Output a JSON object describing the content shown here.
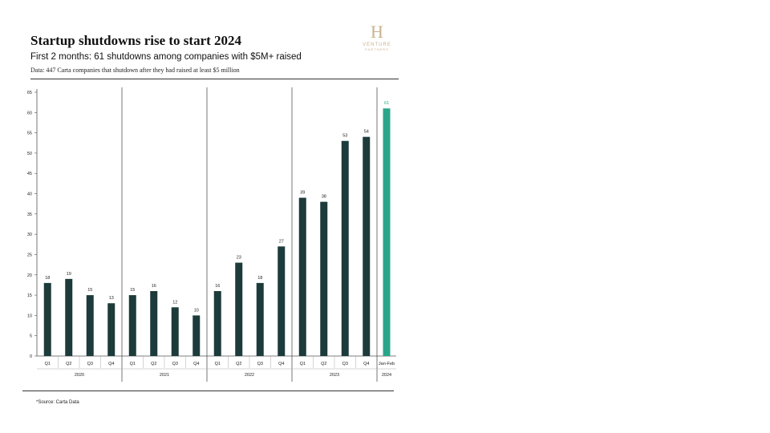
{
  "header": {
    "title": "Startup shutdowns rise to start 2024",
    "subtitle": "First 2 months: 61 shutdowns among companies with $5M+ raised",
    "note": "Data: 447 Carta companies that shutdown after they had raised at least $5 million"
  },
  "logo": {
    "mark": "H",
    "word": "VENTURE",
    "word2": "PARTNERS",
    "color": "#c9b28e"
  },
  "footer": {
    "source": "*Source: Carta Data"
  },
  "chart_data": {
    "type": "bar",
    "title": "Startup shutdowns rise to start 2024",
    "xlabel": "",
    "ylabel": "",
    "ylim": [
      0,
      65
    ],
    "yticks": [
      0,
      5,
      10,
      15,
      20,
      25,
      30,
      35,
      40,
      45,
      50,
      55,
      60,
      65
    ],
    "grid": false,
    "legend": "none",
    "groups": [
      {
        "label": "2020",
        "categories": [
          "Q1",
          "Q2",
          "Q3",
          "Q4"
        ],
        "values": [
          18,
          19,
          15,
          13
        ]
      },
      {
        "label": "2021",
        "categories": [
          "Q1",
          "Q2",
          "Q3",
          "Q4"
        ],
        "values": [
          15,
          16,
          12,
          10
        ]
      },
      {
        "label": "2022",
        "categories": [
          "Q1",
          "Q2",
          "Q3",
          "Q4"
        ],
        "values": [
          16,
          23,
          18,
          27
        ]
      },
      {
        "label": "2023",
        "categories": [
          "Q1",
          "Q2",
          "Q3",
          "Q4"
        ],
        "values": [
          39,
          38,
          53,
          54
        ]
      },
      {
        "label": "2024",
        "categories": [
          "Jan-Feb"
        ],
        "values": [
          61
        ]
      }
    ],
    "colors": {
      "bar": "#1c3b3a",
      "highlight": "#2aa58a",
      "highlight_label": "#2aa58a",
      "divider": "#555555",
      "text": "#222222"
    }
  }
}
